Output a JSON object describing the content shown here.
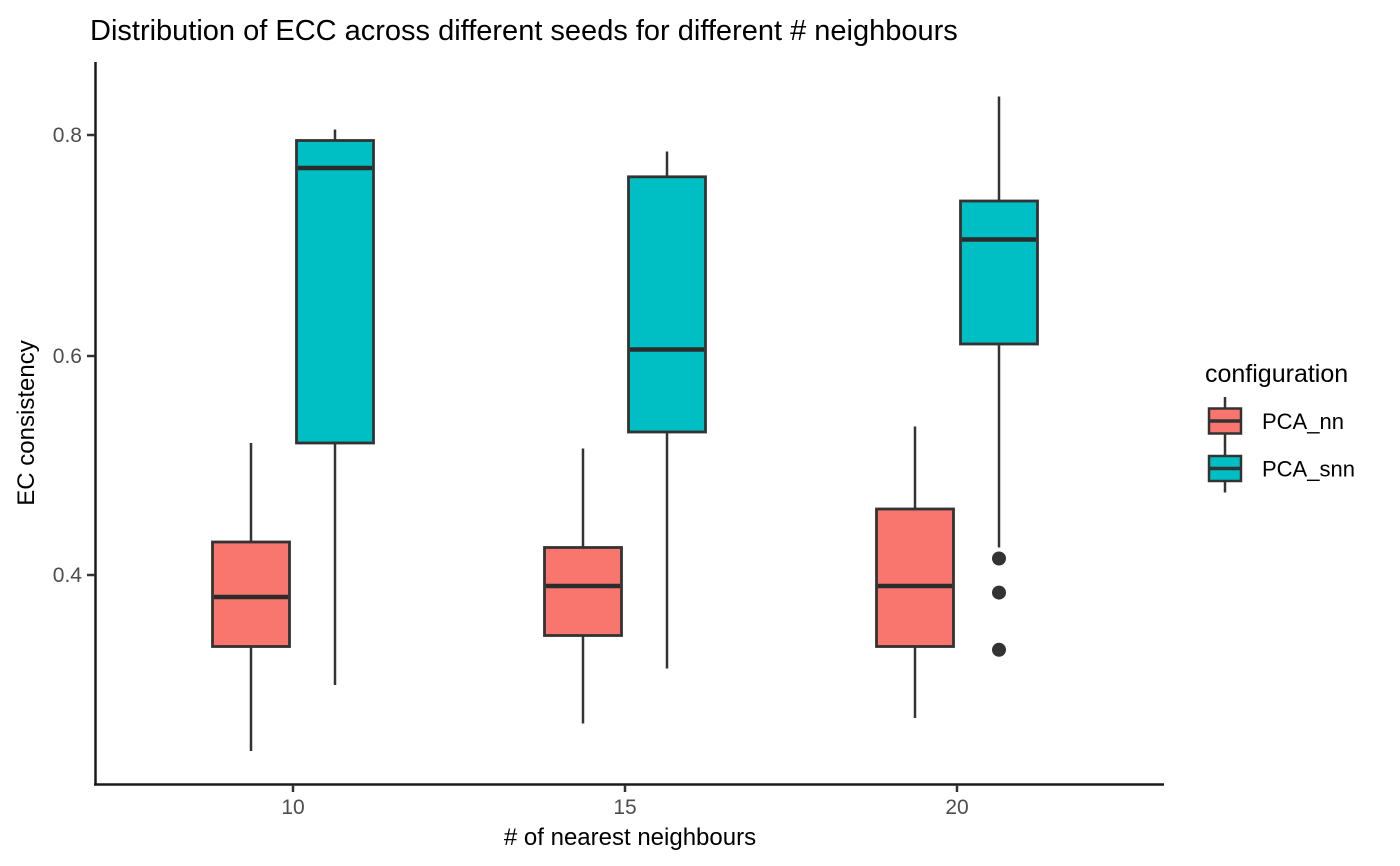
{
  "chart_data": {
    "type": "boxplot",
    "title": "Distribution of ECC across different seeds for different # neighbours",
    "xlabel": "# of nearest neighbours",
    "ylabel": "EC consistency",
    "categories": [
      "10",
      "15",
      "20"
    ],
    "x_tick_labels": [
      "10",
      "15",
      "20"
    ],
    "y_ticks": [
      0.4,
      0.6,
      0.8
    ],
    "y_tick_labels": [
      "0.4",
      "0.6",
      "0.8"
    ],
    "ylim": [
      0.21,
      0.865
    ],
    "grid": "off",
    "legend": {
      "title": "configuration",
      "position": "right",
      "entries": [
        {
          "label": "PCA_nn",
          "color": "#F8766D"
        },
        {
          "label": "PCA_snn",
          "color": "#00BFC4"
        }
      ]
    },
    "series": [
      {
        "name": "PCA_nn",
        "color": "#F8766D",
        "boxes": [
          {
            "category": "10",
            "whisker_low": 0.24,
            "q1": 0.335,
            "median": 0.38,
            "q3": 0.43,
            "whisker_high": 0.52,
            "outliers": []
          },
          {
            "category": "15",
            "whisker_low": 0.265,
            "q1": 0.345,
            "median": 0.39,
            "q3": 0.425,
            "whisker_high": 0.515,
            "outliers": []
          },
          {
            "category": "20",
            "whisker_low": 0.27,
            "q1": 0.335,
            "median": 0.39,
            "q3": 0.46,
            "whisker_high": 0.535,
            "outliers": []
          }
        ]
      },
      {
        "name": "PCA_snn",
        "color": "#00BFC4",
        "boxes": [
          {
            "category": "10",
            "whisker_low": 0.3,
            "q1": 0.52,
            "median": 0.77,
            "q3": 0.795,
            "whisker_high": 0.805,
            "outliers": []
          },
          {
            "category": "15",
            "whisker_low": 0.315,
            "q1": 0.53,
            "median": 0.605,
            "q3": 0.762,
            "whisker_high": 0.785,
            "outliers": []
          },
          {
            "category": "20",
            "whisker_low": 0.425,
            "q1": 0.61,
            "median": 0.705,
            "q3": 0.74,
            "whisker_high": 0.835,
            "outliers": [
              0.415,
              0.384,
              0.332
            ]
          }
        ]
      }
    ],
    "style": {
      "axis_color": "#1a1a1a",
      "box_border_color": "#333333",
      "median_color": "#2b2b2b",
      "outlier_color": "#333333",
      "tick_label_color": "#4d4d4d",
      "background": "#ffffff"
    }
  }
}
